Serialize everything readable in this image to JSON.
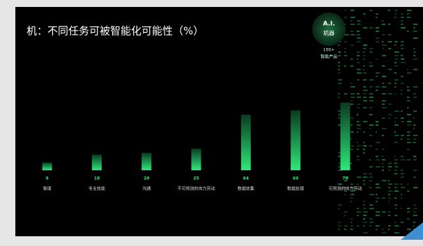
{
  "chart_data": {
    "type": "bar",
    "title": "机：不同任务可被智能化可能性（%）",
    "categories": [
      "管理",
      "专业技能",
      "沟通",
      "不可预测的体力劳动",
      "数据收集",
      "数据处理",
      "可预测的体力劳动"
    ],
    "values": [
      9,
      18,
      20,
      25,
      64,
      69,
      78
    ],
    "color": "#2ee87a"
  },
  "badge": {
    "title": "A.I.",
    "subtitle": "机器",
    "count": "100+",
    "caption": "智能产品"
  }
}
